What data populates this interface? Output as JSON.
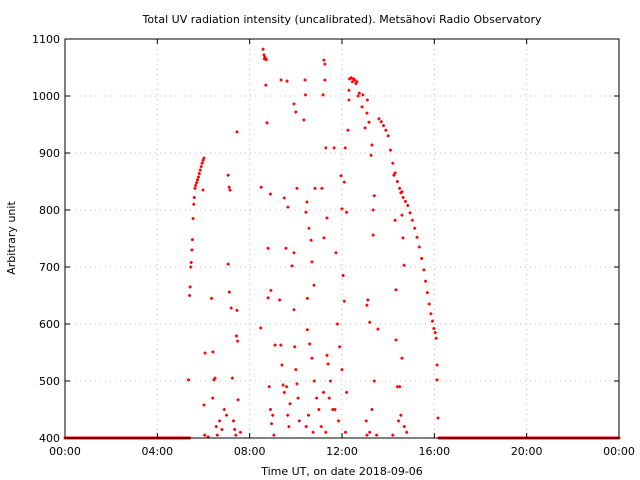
{
  "chart_data": {
    "type": "scatter",
    "title": "Total UV radiation intensity (uncalibrated). Metsähovi Radio Observatory",
    "xlabel": "Time UT, on date 2018-09-06",
    "ylabel": "Arbitrary unit",
    "xlim": [
      0,
      24
    ],
    "ylim": [
      400,
      1100
    ],
    "x_ticks": [
      0,
      4,
      8,
      12,
      16,
      20,
      24
    ],
    "x_tick_labels": [
      "00:00",
      "04:00",
      "08:00",
      "12:00",
      "16:00",
      "20:00",
      "00:00"
    ],
    "y_ticks": [
      400,
      500,
      600,
      700,
      800,
      900,
      1000,
      1100
    ],
    "y_tick_labels": [
      "400",
      "500",
      "600",
      "700",
      "800",
      "900",
      "1000",
      "1100"
    ],
    "grid": true,
    "point_color": "#ff0000",
    "baseline_segments": [
      {
        "from": 0,
        "to": 5.4,
        "value": 400
      },
      {
        "from": 16.2,
        "to": 24,
        "value": 400
      }
    ],
    "points": [
      [
        5.35,
        502
      ],
      [
        5.4,
        650
      ],
      [
        5.42,
        665
      ],
      [
        5.45,
        700
      ],
      [
        5.47,
        708
      ],
      [
        5.5,
        730
      ],
      [
        5.52,
        748
      ],
      [
        5.55,
        785
      ],
      [
        5.58,
        810
      ],
      [
        5.6,
        822
      ],
      [
        5.63,
        838
      ],
      [
        5.66,
        843
      ],
      [
        5.7,
        848
      ],
      [
        5.74,
        853
      ],
      [
        5.78,
        858
      ],
      [
        5.82,
        864
      ],
      [
        5.86,
        870
      ],
      [
        5.9,
        876
      ],
      [
        5.94,
        882
      ],
      [
        5.98,
        887
      ],
      [
        6.02,
        891
      ],
      [
        5.98,
        835
      ],
      [
        6.07,
        549
      ],
      [
        6.02,
        458
      ],
      [
        6.05,
        405
      ],
      [
        6.2,
        402
      ],
      [
        6.41,
        551
      ],
      [
        6.35,
        645
      ],
      [
        6.45,
        502
      ],
      [
        6.5,
        505
      ],
      [
        6.4,
        470
      ],
      [
        6.55,
        420
      ],
      [
        6.6,
        405
      ],
      [
        6.7,
        430
      ],
      [
        6.8,
        415
      ],
      [
        6.9,
        450
      ],
      [
        7.0,
        440
      ],
      [
        7.07,
        705
      ],
      [
        7.07,
        861
      ],
      [
        7.11,
        840
      ],
      [
        7.15,
        835
      ],
      [
        7.12,
        656
      ],
      [
        7.2,
        628
      ],
      [
        7.25,
        505
      ],
      [
        7.3,
        430
      ],
      [
        7.35,
        415
      ],
      [
        7.45,
        937
      ],
      [
        7.45,
        624
      ],
      [
        7.43,
        579
      ],
      [
        7.48,
        570
      ],
      [
        7.5,
        467
      ],
      [
        7.4,
        405
      ],
      [
        7.6,
        410
      ],
      [
        8.5,
        840
      ],
      [
        8.48,
        593
      ],
      [
        8.58,
        1082
      ],
      [
        8.62,
        1072
      ],
      [
        8.66,
        1068
      ],
      [
        8.72,
        1064
      ],
      [
        8.64,
        1065
      ],
      [
        8.7,
        1019
      ],
      [
        8.75,
        953
      ],
      [
        8.8,
        733
      ],
      [
        8.9,
        828
      ],
      [
        8.92,
        659
      ],
      [
        8.8,
        646
      ],
      [
        8.85,
        490
      ],
      [
        8.9,
        450
      ],
      [
        8.95,
        425
      ],
      [
        9.1,
        563
      ],
      [
        9.05,
        405
      ],
      [
        9.0,
        440
      ],
      [
        9.36,
        1028
      ],
      [
        9.62,
        1026
      ],
      [
        9.5,
        821
      ],
      [
        9.57,
        733
      ],
      [
        9.66,
        805
      ],
      [
        9.3,
        642
      ],
      [
        9.35,
        563
      ],
      [
        9.4,
        528
      ],
      [
        9.45,
        493
      ],
      [
        9.5,
        480
      ],
      [
        9.6,
        490
      ],
      [
        9.65,
        440
      ],
      [
        9.7,
        420
      ],
      [
        9.75,
        460
      ],
      [
        9.84,
        702
      ],
      [
        9.92,
        725
      ],
      [
        9.92,
        625
      ],
      [
        9.92,
        986
      ],
      [
        10.0,
        972
      ],
      [
        10.05,
        838
      ],
      [
        9.95,
        560
      ],
      [
        10.0,
        520
      ],
      [
        10.05,
        495
      ],
      [
        10.1,
        470
      ],
      [
        10.15,
        430
      ],
      [
        10.4,
        1028
      ],
      [
        10.42,
        1002
      ],
      [
        10.35,
        958
      ],
      [
        10.48,
        814
      ],
      [
        10.44,
        796
      ],
      [
        10.5,
        645
      ],
      [
        10.57,
        768
      ],
      [
        10.66,
        747
      ],
      [
        10.7,
        709
      ],
      [
        10.83,
        838
      ],
      [
        11.13,
        838
      ],
      [
        10.79,
        668
      ],
      [
        10.5,
        590
      ],
      [
        10.6,
        565
      ],
      [
        10.7,
        540
      ],
      [
        10.8,
        500
      ],
      [
        10.9,
        470
      ],
      [
        11.0,
        450
      ],
      [
        10.45,
        420
      ],
      [
        10.55,
        440
      ],
      [
        10.75,
        410
      ],
      [
        11.22,
        1063
      ],
      [
        11.26,
        1056
      ],
      [
        11.26,
        1028
      ],
      [
        11.18,
        1002
      ],
      [
        11.3,
        909
      ],
      [
        11.35,
        786
      ],
      [
        11.22,
        751
      ],
      [
        11.35,
        545
      ],
      [
        11.4,
        530
      ],
      [
        11.5,
        500
      ],
      [
        11.45,
        470
      ],
      [
        11.6,
        450
      ],
      [
        11.2,
        480
      ],
      [
        11.1,
        420
      ],
      [
        11.3,
        410
      ],
      [
        11.66,
        909
      ],
      [
        11.74,
        725
      ],
      [
        11.96,
        860
      ],
      [
        12.0,
        802
      ],
      [
        12.1,
        849
      ],
      [
        12.14,
        909
      ],
      [
        12.2,
        796
      ],
      [
        12.26,
        940
      ],
      [
        12.1,
        640
      ],
      [
        12.05,
        685
      ],
      [
        11.8,
        600
      ],
      [
        11.9,
        560
      ],
      [
        12.0,
        520
      ],
      [
        12.2,
        480
      ],
      [
        11.7,
        450
      ],
      [
        11.85,
        430
      ],
      [
        12.15,
        410
      ],
      [
        12.3,
        993
      ],
      [
        12.3,
        1010
      ],
      [
        12.33,
        1030
      ],
      [
        12.4,
        1032
      ],
      [
        12.45,
        1025
      ],
      [
        12.5,
        1030
      ],
      [
        12.55,
        1028
      ],
      [
        12.6,
        1022
      ],
      [
        12.65,
        1025
      ],
      [
        12.7,
        1000
      ],
      [
        12.75,
        1005
      ],
      [
        12.87,
        981
      ],
      [
        12.9,
        1002
      ],
      [
        13.0,
        944
      ],
      [
        13.08,
        970
      ],
      [
        13.1,
        993
      ],
      [
        13.17,
        954
      ],
      [
        13.3,
        914
      ],
      [
        13.26,
        896
      ],
      [
        13.35,
        800
      ],
      [
        13.35,
        756
      ],
      [
        13.4,
        825
      ],
      [
        13.08,
        633
      ],
      [
        13.12,
        642
      ],
      [
        13.2,
        603
      ],
      [
        13.56,
        591
      ],
      [
        13.08,
        405
      ],
      [
        13.05,
        430
      ],
      [
        13.3,
        450
      ],
      [
        13.2,
        410
      ],
      [
        13.4,
        500
      ],
      [
        13.5,
        405
      ],
      [
        13.6,
        960
      ],
      [
        13.7,
        955
      ],
      [
        13.8,
        948
      ],
      [
        13.9,
        940
      ],
      [
        14.0,
        930
      ],
      [
        14.1,
        905
      ],
      [
        14.2,
        882
      ],
      [
        14.3,
        865
      ],
      [
        14.4,
        850
      ],
      [
        14.5,
        838
      ],
      [
        14.55,
        830
      ],
      [
        14.65,
        822
      ],
      [
        14.75,
        815
      ],
      [
        14.85,
        808
      ],
      [
        14.95,
        795
      ],
      [
        15.05,
        782
      ],
      [
        15.15,
        768
      ],
      [
        15.25,
        752
      ],
      [
        15.35,
        735
      ],
      [
        15.45,
        715
      ],
      [
        15.55,
        695
      ],
      [
        15.62,
        675
      ],
      [
        15.7,
        655
      ],
      [
        15.78,
        635
      ],
      [
        15.85,
        618
      ],
      [
        15.92,
        605
      ],
      [
        15.98,
        592
      ],
      [
        16.04,
        585
      ],
      [
        16.08,
        575
      ],
      [
        16.12,
        528
      ],
      [
        16.12,
        502
      ],
      [
        16.16,
        435
      ],
      [
        14.25,
        861
      ],
      [
        14.3,
        782
      ],
      [
        14.34,
        660
      ],
      [
        14.34,
        572
      ],
      [
        14.4,
        490
      ],
      [
        14.45,
        430
      ],
      [
        14.2,
        405
      ],
      [
        14.6,
        832
      ],
      [
        14.6,
        791
      ],
      [
        14.64,
        751
      ],
      [
        14.69,
        703
      ],
      [
        14.6,
        540
      ],
      [
        14.5,
        490
      ],
      [
        14.55,
        440
      ],
      [
        14.7,
        420
      ],
      [
        14.8,
        410
      ]
    ]
  }
}
